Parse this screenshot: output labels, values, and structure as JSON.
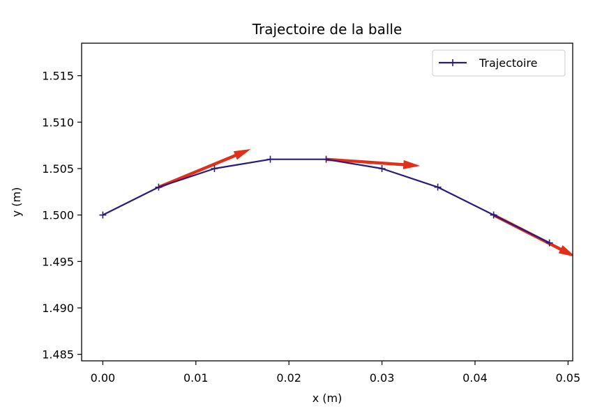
{
  "chart_data": {
    "type": "line",
    "title": "Trajectoire de la balle",
    "xlabel": "x (m)",
    "ylabel": "y (m)",
    "xlim": [
      -0.00228,
      0.0505
    ],
    "ylim": [
      1.4843,
      1.5185
    ],
    "x_ticks": [
      0.0,
      0.01,
      0.02,
      0.03,
      0.04,
      0.05
    ],
    "x_tick_labels": [
      "0.00",
      "0.01",
      "0.02",
      "0.03",
      "0.04",
      "0.05"
    ],
    "y_ticks": [
      1.485,
      1.49,
      1.495,
      1.5,
      1.505,
      1.51,
      1.515
    ],
    "y_tick_labels": [
      "1.485",
      "1.490",
      "1.495",
      "1.500",
      "1.505",
      "1.510",
      "1.515"
    ],
    "grid": false,
    "legend_position": "top-right",
    "series": [
      {
        "name": "Trajectoire",
        "color": "#2c1a7a",
        "marker": "plus",
        "x": [
          0.0,
          0.006,
          0.012,
          0.018,
          0.024,
          0.03,
          0.036,
          0.042,
          0.048
        ],
        "y": [
          1.5,
          1.503,
          1.505,
          1.506,
          1.506,
          1.505,
          1.503,
          1.5,
          1.497
        ]
      }
    ],
    "velocity_arrows": {
      "color": "#e0301a",
      "items": [
        {
          "x0": 0.006,
          "y0": 1.503,
          "x1": 0.0159,
          "y1": 1.5071
        },
        {
          "x0": 0.024,
          "y0": 1.506,
          "x1": 0.0341,
          "y1": 1.5053
        },
        {
          "x0": 0.042,
          "y0": 1.5,
          "x1": 0.0508,
          "y1": 1.4955
        }
      ]
    }
  }
}
